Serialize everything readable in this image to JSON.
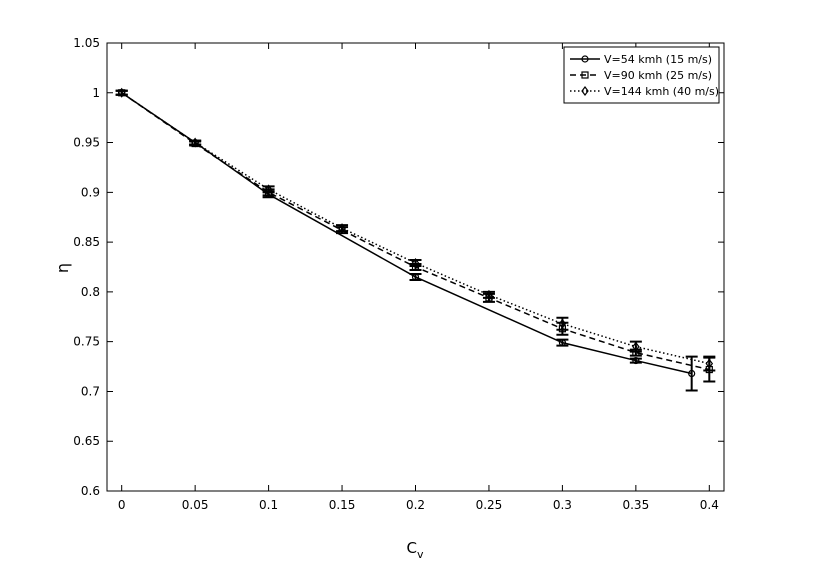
{
  "chart_data": {
    "type": "line",
    "xlabel": "C",
    "xlabel_subscript": "v",
    "ylabel": "η",
    "xlim": [
      -0.01,
      0.41
    ],
    "ylim": [
      0.6,
      1.05
    ],
    "xticks": [
      0,
      0.05,
      0.1,
      0.15,
      0.2,
      0.25,
      0.3,
      0.35,
      0.4
    ],
    "yticks": [
      0.6,
      0.65,
      0.7,
      0.75,
      0.8,
      0.85,
      0.9,
      0.95,
      1,
      1.05
    ],
    "legend": "upper right",
    "series": [
      {
        "name": "V=54 kmh (15 m/s)",
        "color": "#000000",
        "dash": "solid",
        "marker": "circle",
        "x": [
          0,
          0.05,
          0.1,
          0.2,
          0.3,
          0.35,
          0.388
        ],
        "values": [
          1,
          0.95,
          0.898,
          0.815,
          0.749,
          0.731,
          0.718
        ],
        "errors": [
          0.002,
          0.002,
          0.003,
          0.003,
          0.003,
          0.002,
          0.017
        ]
      },
      {
        "name": "V=90 kmh (25 m/s)",
        "color": "#000000",
        "dash": "dashed",
        "marker": "square",
        "x": [
          0,
          0.05,
          0.1,
          0.15,
          0.2,
          0.25,
          0.3,
          0.35,
          0.4
        ],
        "values": [
          1,
          0.949,
          0.9,
          0.862,
          0.825,
          0.794,
          0.763,
          0.739,
          0.722
        ],
        "errors": [
          0.002,
          0.002,
          0.003,
          0.003,
          0.003,
          0.004,
          0.006,
          0.003,
          0.012
        ]
      },
      {
        "name": "V=144 kmh (40 m/s)",
        "color": "#000000",
        "dash": "dotted",
        "marker": "diamond",
        "x": [
          0,
          0.05,
          0.1,
          0.15,
          0.2,
          0.25,
          0.3,
          0.35,
          0.4
        ],
        "values": [
          1,
          0.95,
          0.903,
          0.864,
          0.829,
          0.797,
          0.768,
          0.745,
          0.728
        ],
        "errors": [
          0.002,
          0.002,
          0.003,
          0.003,
          0.003,
          0.003,
          0.006,
          0.005,
          0.007
        ]
      }
    ]
  }
}
